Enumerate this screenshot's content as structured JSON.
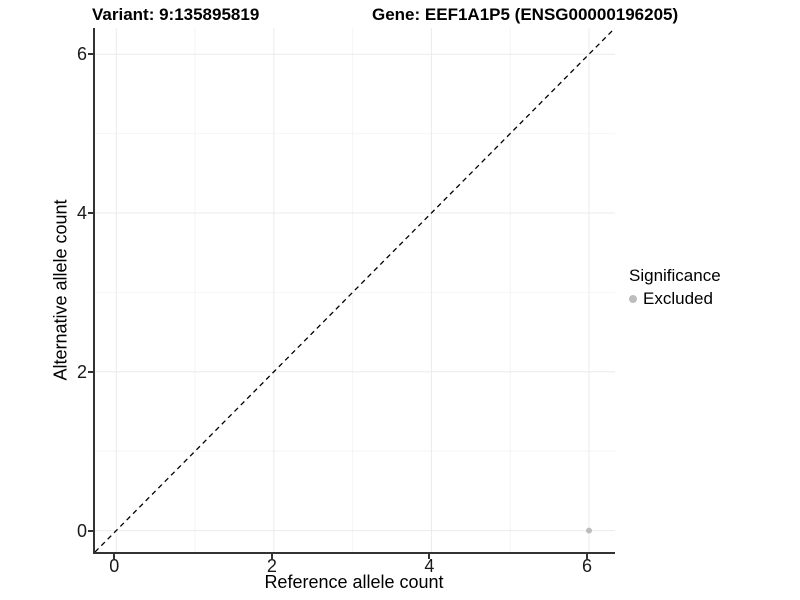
{
  "figure": {
    "background": "#ffffff"
  },
  "chart_data": {
    "type": "scatter",
    "title_left": "Variant: 9:135895819",
    "title_right": "Gene: EEF1A1P5 (ENSG00000196205)",
    "xlabel": "Reference allele count",
    "ylabel": "Alternative allele count",
    "xlim": [
      -0.27,
      6.33
    ],
    "ylim": [
      -0.27,
      6.33
    ],
    "xticks": [
      0,
      2,
      4,
      6
    ],
    "yticks": [
      0,
      2,
      4,
      6
    ],
    "x_minor_ticks": [
      1,
      3,
      5
    ],
    "y_minor_ticks": [
      1,
      3,
      5
    ],
    "grid": "major+minor",
    "identity_line": {
      "style": "dashed",
      "x1": -0.27,
      "y1": -0.27,
      "x2": 6.33,
      "y2": 6.33,
      "color": "#000000"
    },
    "series": [
      {
        "name": "Excluded",
        "color": "#bdbdbd",
        "points": [
          {
            "x": 6,
            "y": 0
          }
        ]
      }
    ],
    "legend": {
      "title": "Significance",
      "position": "right",
      "items": [
        {
          "label": "Excluded",
          "color": "#bdbdbd"
        }
      ]
    },
    "colors": {
      "major_grid": "#ebebeb",
      "minor_grid": "#f4f4f4",
      "axis_line": "#333333",
      "tick_label": "#1a1a1a",
      "title_text": "#000000"
    }
  }
}
